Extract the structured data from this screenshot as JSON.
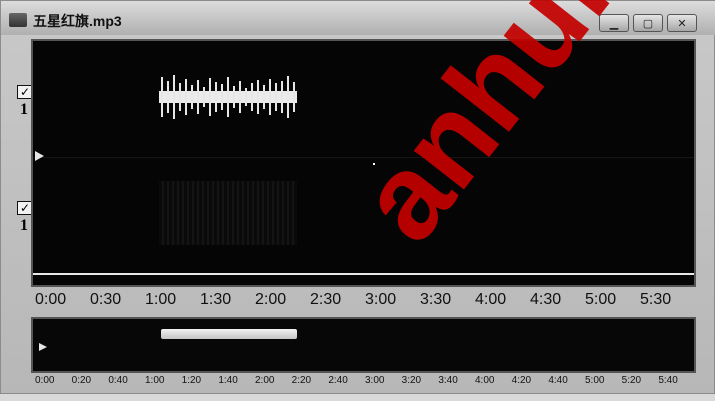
{
  "window": {
    "title": "五星红旗.mp3"
  },
  "tracks": [
    {
      "label": "1"
    },
    {
      "label": "1"
    }
  ],
  "timeline": {
    "main_ticks": [
      "0:00",
      "0:30",
      "1:00",
      "1:30",
      "2:00",
      "2:30",
      "3:00",
      "3:30",
      "4:00",
      "4:30",
      "5:00",
      "5:30"
    ],
    "overview_ticks": [
      "0:00",
      "0:20",
      "0:40",
      "1:00",
      "1:20",
      "1:40",
      "2:00",
      "2:20",
      "2:40",
      "3:00",
      "3:20",
      "3:40",
      "4:00",
      "4:20",
      "4:40",
      "5:00",
      "5:20",
      "5:40"
    ]
  },
  "watermark": "anhui"
}
